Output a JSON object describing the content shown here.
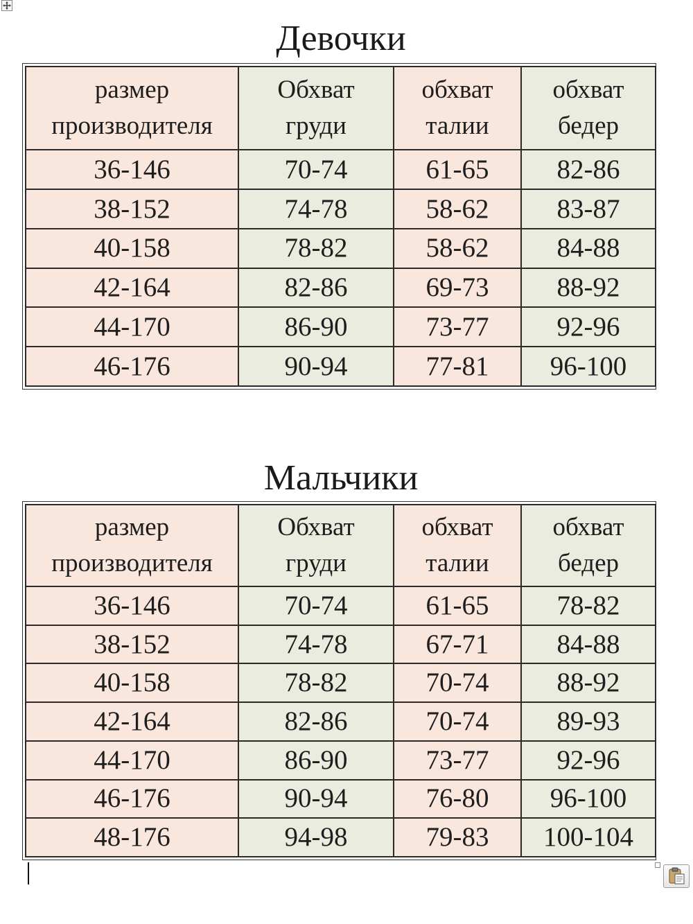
{
  "girls": {
    "title": "Девочки",
    "headers": [
      [
        "размер",
        "производителя"
      ],
      [
        "Обхват",
        "груди"
      ],
      [
        "обхват",
        "талии"
      ],
      [
        "обхват",
        "бедер"
      ]
    ],
    "rows": [
      [
        "36-146",
        "70-74",
        "61-65",
        "82-86"
      ],
      [
        "38-152",
        "74-78",
        "58-62",
        "83-87"
      ],
      [
        "40-158",
        "78-82",
        "58-62",
        "84-88"
      ],
      [
        "42-164",
        "82-86",
        "69-73",
        "88-92"
      ],
      [
        "44-170",
        "86-90",
        "73-77",
        "92-96"
      ],
      [
        "46-176",
        "90-94",
        "77-81",
        "96-100"
      ]
    ]
  },
  "boys": {
    "title": "Мальчики",
    "headers": [
      [
        "размер",
        "производителя"
      ],
      [
        "Обхват",
        "груди"
      ],
      [
        "обхват",
        "талии"
      ],
      [
        "обхват",
        "бедер"
      ]
    ],
    "rows": [
      [
        "36-146",
        "70-74",
        "61-65",
        "78-82"
      ],
      [
        "38-152",
        "74-78",
        "67-71",
        "84-88"
      ],
      [
        "40-158",
        "78-82",
        "70-74",
        "88-92"
      ],
      [
        "42-164",
        "82-86",
        "70-74",
        "89-93"
      ],
      [
        "44-170",
        "86-90",
        "73-77",
        "92-96"
      ],
      [
        "46-176",
        "90-94",
        "76-80",
        "96-100"
      ],
      [
        "48-176",
        "94-98",
        "79-83",
        "100-104"
      ]
    ]
  },
  "colors": {
    "pink_cell": "#f9e6dd",
    "green_cell": "#e9ecdf",
    "border": "#2a2a2a"
  },
  "icons": {
    "table_move_handle": "four-way-arrow-icon",
    "paste_options": "clipboard-icon"
  }
}
